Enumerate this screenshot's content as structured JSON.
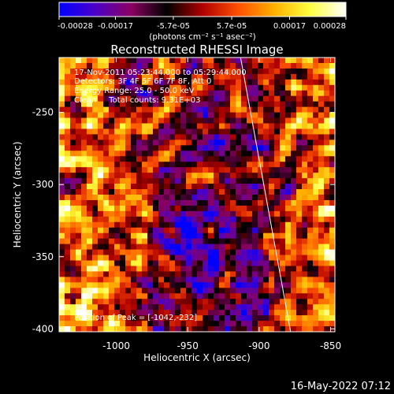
{
  "colorbar": {
    "ticks": [
      "-0.00028",
      "-0.00017",
      "-5.7e-05",
      "5.7e-05",
      "0.00017",
      "0.00028"
    ],
    "tick_values": [
      -0.00028,
      -0.00017,
      -5.7e-05,
      5.7e-05,
      0.00017,
      0.00028
    ],
    "range": [
      -0.00028,
      0.00028
    ],
    "unit_label": "(photons cm⁻² s⁻¹ asec⁻²)",
    "colors": [
      "#0000ff",
      "#4b00c8",
      "#8a0060",
      "#000000",
      "#b00000",
      "#ff5000",
      "#ffb000",
      "#ffff40",
      "#ffffff"
    ]
  },
  "chart_data": {
    "type": "heatmap",
    "title": "Reconstructed RHESSI Image",
    "xlabel": "Heliocentric X (arcsec)",
    "ylabel": "Heliocentric Y (arcsec)",
    "xlim": [
      -1040,
      -847
    ],
    "ylim": [
      -402,
      -212
    ],
    "x_ticks": [
      -1000,
      -950,
      -900,
      -850
    ],
    "y_ticks": [
      -400,
      -350,
      -300,
      -250
    ],
    "x_tick_labels": [
      "-1000",
      "-950",
      "-900",
      "-850"
    ],
    "y_tick_labels": [
      "-400",
      "-350",
      "-300",
      "-250"
    ],
    "annotations": [
      "17-Nov-2011 05:23:44.000 to 05:29:44.000",
      "Detectors: 3F 4F 5F 6F 7F 8F, Att 0",
      "Energy Range: 25.0 - 50.0 keV",
      "Clean     Total counts: 9.31E+03"
    ],
    "peak_label": "Position of Peak = [-1042,-232]",
    "limb_line": {
      "from": [
        -913,
        -212
      ],
      "to": [
        -878,
        -402
      ]
    },
    "grid": false
  },
  "footer": {
    "timestamp": "16-May-2022 07:12"
  }
}
